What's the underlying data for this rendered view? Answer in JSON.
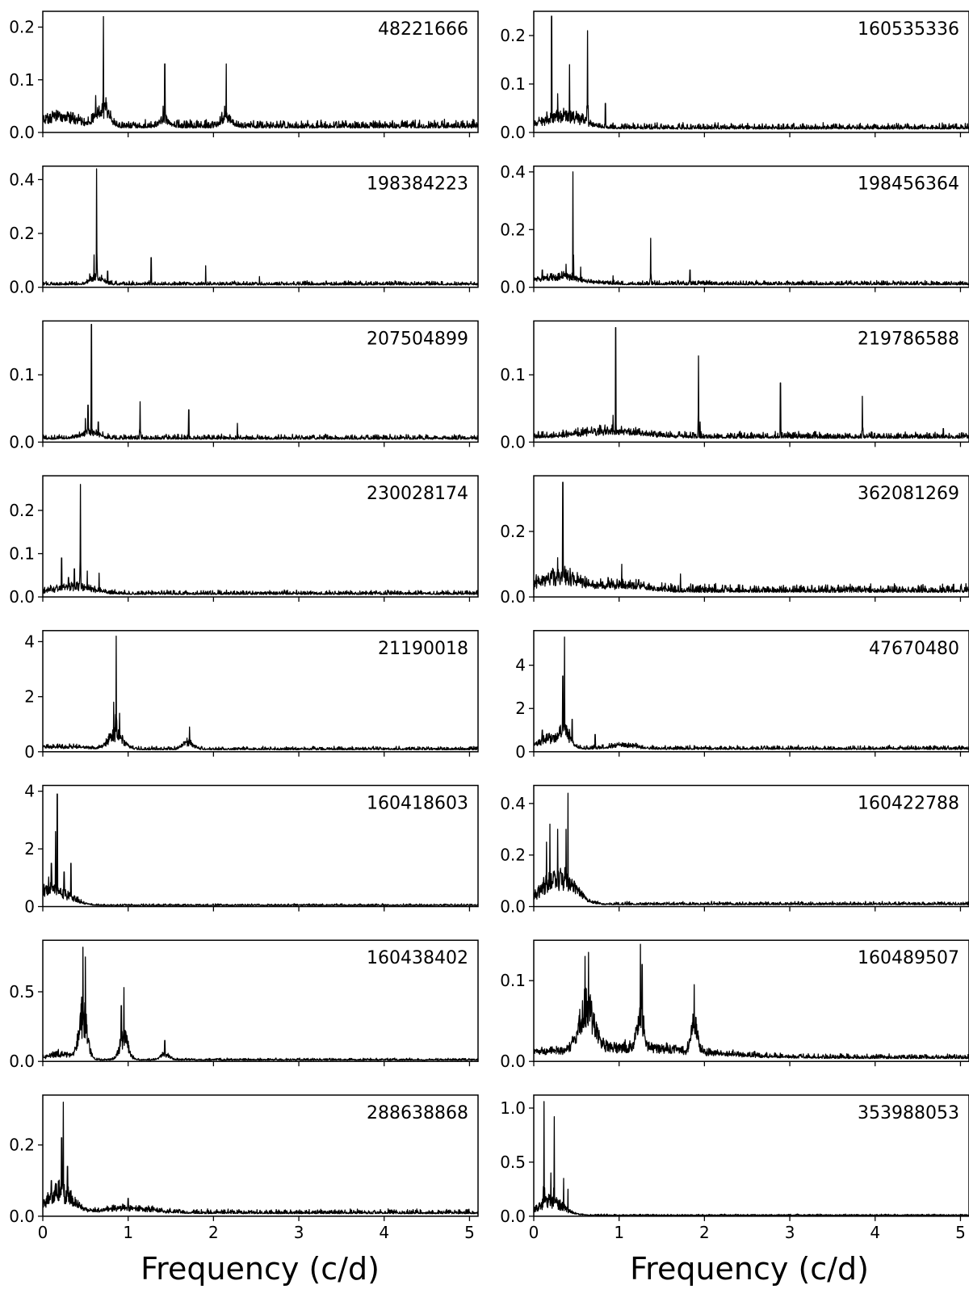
{
  "colors": {
    "line": "#000000",
    "background": "#ffffff",
    "frame": "#000000"
  },
  "chart_data": [
    {
      "type": "line",
      "label": "48221666",
      "ylim": [
        0,
        0.23
      ],
      "yticks": [
        0.0,
        0.1,
        0.2
      ],
      "ytick_labels": [
        "0.0",
        "0.1",
        "0.2"
      ],
      "xlim": [
        0,
        5.1
      ],
      "noise": 0.012,
      "peaks": [
        [
          0.71,
          0.22
        ],
        [
          1.43,
          0.13
        ],
        [
          2.15,
          0.13
        ],
        [
          0.62,
          0.07
        ],
        [
          0.66,
          0.05
        ],
        [
          0.8,
          0.03
        ],
        [
          1.41,
          0.05
        ],
        [
          2.13,
          0.05
        ]
      ],
      "bumps": [
        [
          0.7,
          0.04,
          0.1
        ],
        [
          1.43,
          0.015,
          0.08
        ],
        [
          2.15,
          0.02,
          0.08
        ],
        [
          0.2,
          0.02,
          0.3
        ]
      ]
    },
    {
      "type": "line",
      "label": "160535336",
      "ylim": [
        0,
        0.25
      ],
      "yticks": [
        0.0,
        0.1,
        0.2
      ],
      "ytick_labels": [
        "0.0",
        "0.1",
        "0.2"
      ],
      "xlim": [
        0,
        5.1
      ],
      "noise": 0.01,
      "peaks": [
        [
          0.21,
          0.24
        ],
        [
          0.42,
          0.14
        ],
        [
          0.63,
          0.21
        ],
        [
          0.84,
          0.06
        ],
        [
          0.28,
          0.08
        ],
        [
          0.35,
          0.05
        ],
        [
          0.5,
          0.04
        ]
      ],
      "bumps": [
        [
          0.35,
          0.03,
          0.3
        ]
      ]
    },
    {
      "type": "line",
      "label": "198384223",
      "ylim": [
        0,
        0.45
      ],
      "yticks": [
        0.0,
        0.2,
        0.4
      ],
      "ytick_labels": [
        "0.0",
        "0.2",
        "0.4"
      ],
      "xlim": [
        0,
        5.1
      ],
      "noise": 0.012,
      "peaks": [
        [
          0.63,
          0.44
        ],
        [
          1.27,
          0.11
        ],
        [
          1.91,
          0.08
        ],
        [
          2.54,
          0.04
        ],
        [
          0.6,
          0.12
        ],
        [
          0.76,
          0.06
        ],
        [
          0.55,
          0.05
        ]
      ],
      "bumps": [
        [
          0.63,
          0.03,
          0.1
        ]
      ]
    },
    {
      "type": "line",
      "label": "198456364",
      "ylim": [
        0,
        0.42
      ],
      "yticks": [
        0.0,
        0.2,
        0.4
      ],
      "ytick_labels": [
        "0.0",
        "0.2",
        "0.4"
      ],
      "xlim": [
        0,
        5.1
      ],
      "noise": 0.012,
      "peaks": [
        [
          0.46,
          0.4
        ],
        [
          1.37,
          0.17
        ],
        [
          1.83,
          0.06
        ],
        [
          0.93,
          0.04
        ],
        [
          0.38,
          0.08
        ],
        [
          0.55,
          0.07
        ],
        [
          0.1,
          0.06
        ]
      ],
      "bumps": [
        [
          0.3,
          0.03,
          0.35
        ]
      ]
    },
    {
      "type": "line",
      "label": "207504899",
      "ylim": [
        0,
        0.18
      ],
      "yticks": [
        0.0,
        0.1
      ],
      "ytick_labels": [
        "0.0",
        "0.1"
      ],
      "xlim": [
        0,
        5.1
      ],
      "noise": 0.006,
      "peaks": [
        [
          0.57,
          0.175
        ],
        [
          1.14,
          0.06
        ],
        [
          1.71,
          0.048
        ],
        [
          2.28,
          0.028
        ],
        [
          0.53,
          0.055
        ],
        [
          0.5,
          0.035
        ],
        [
          0.65,
          0.03
        ]
      ],
      "bumps": [
        [
          0.55,
          0.01,
          0.15
        ]
      ]
    },
    {
      "type": "line",
      "label": "219786588",
      "ylim": [
        0,
        0.18
      ],
      "yticks": [
        0.0,
        0.1
      ],
      "ytick_labels": [
        "0.0",
        "0.1"
      ],
      "xlim": [
        0,
        5.1
      ],
      "noise": 0.008,
      "peaks": [
        [
          0.96,
          0.17
        ],
        [
          1.93,
          0.128
        ],
        [
          2.89,
          0.088
        ],
        [
          3.85,
          0.068
        ],
        [
          0.93,
          0.04
        ],
        [
          1.95,
          0.03
        ],
        [
          4.8,
          0.02
        ]
      ],
      "bumps": [
        [
          0.9,
          0.01,
          0.5
        ]
      ]
    },
    {
      "type": "line",
      "label": "230028174",
      "ylim": [
        0,
        0.28
      ],
      "yticks": [
        0.0,
        0.1,
        0.2
      ],
      "ytick_labels": [
        "0.0",
        "0.1",
        "0.2"
      ],
      "xlim": [
        0,
        5.1
      ],
      "noise": 0.008,
      "peaks": [
        [
          0.44,
          0.26
        ],
        [
          0.22,
          0.09
        ],
        [
          0.37,
          0.065
        ],
        [
          0.52,
          0.06
        ],
        [
          0.66,
          0.055
        ],
        [
          0.3,
          0.045
        ]
      ],
      "bumps": [
        [
          0.35,
          0.02,
          0.3
        ]
      ]
    },
    {
      "type": "line",
      "label": "362081269",
      "ylim": [
        0,
        0.37
      ],
      "yticks": [
        0.0,
        0.2
      ],
      "ytick_labels": [
        "0.0",
        "0.2"
      ],
      "xlim": [
        0,
        5.1
      ],
      "noise": 0.02,
      "peaks": [
        [
          0.34,
          0.35
        ],
        [
          1.03,
          0.1
        ],
        [
          1.72,
          0.07
        ],
        [
          0.28,
          0.12
        ],
        [
          0.4,
          0.08
        ]
      ],
      "bumps": [
        [
          0.3,
          0.05,
          0.3
        ],
        [
          1.0,
          0.02,
          0.4
        ]
      ]
    },
    {
      "type": "line",
      "label": "21190018",
      "ylim": [
        0,
        4.4
      ],
      "yticks": [
        0,
        2,
        4
      ],
      "ytick_labels": [
        "0",
        "2",
        "4"
      ],
      "xlim": [
        0,
        5.1
      ],
      "noise": 0.1,
      "peaks": [
        [
          0.86,
          4.2
        ],
        [
          1.72,
          0.9
        ],
        [
          0.83,
          1.8
        ],
        [
          0.9,
          1.4
        ],
        [
          2.58,
          0.2
        ]
      ],
      "bumps": [
        [
          0.85,
          0.6,
          0.12
        ],
        [
          1.7,
          0.3,
          0.08
        ],
        [
          0.2,
          0.1,
          0.4
        ]
      ]
    },
    {
      "type": "line",
      "label": "47670480",
      "ylim": [
        0,
        5.6
      ],
      "yticks": [
        0,
        2,
        4
      ],
      "ytick_labels": [
        "0",
        "2",
        "4"
      ],
      "xlim": [
        0,
        5.1
      ],
      "noise": 0.15,
      "peaks": [
        [
          0.36,
          5.3
        ],
        [
          0.34,
          3.5
        ],
        [
          0.72,
          0.8
        ],
        [
          0.1,
          1.0
        ],
        [
          0.45,
          1.5
        ]
      ],
      "bumps": [
        [
          0.36,
          0.9,
          0.1
        ],
        [
          0.15,
          0.5,
          0.15
        ],
        [
          1.05,
          0.2,
          0.2
        ]
      ]
    },
    {
      "type": "line",
      "label": "160418603",
      "ylim": [
        0,
        4.2
      ],
      "yticks": [
        0,
        2,
        4
      ],
      "ytick_labels": [
        "0",
        "2",
        "4"
      ],
      "xlim": [
        0,
        5.1
      ],
      "noise": 0.05,
      "peaks": [
        [
          0.17,
          3.9
        ],
        [
          0.15,
          2.6
        ],
        [
          0.33,
          1.5
        ],
        [
          0.1,
          1.5
        ],
        [
          0.25,
          1.2
        ]
      ],
      "bumps": [
        [
          0.05,
          0.6,
          0.12
        ],
        [
          0.25,
          0.4,
          0.2
        ]
      ]
    },
    {
      "type": "line",
      "label": "160422788",
      "ylim": [
        0,
        0.47
      ],
      "yticks": [
        0.0,
        0.2,
        0.4
      ],
      "ytick_labels": [
        "0.0",
        "0.2",
        "0.4"
      ],
      "xlim": [
        0,
        5.1
      ],
      "noise": 0.01,
      "peaks": [
        [
          0.4,
          0.44
        ],
        [
          0.19,
          0.32
        ],
        [
          0.28,
          0.3
        ],
        [
          0.38,
          0.3
        ],
        [
          0.15,
          0.25
        ]
      ],
      "bumps": [
        [
          0.25,
          0.1,
          0.25
        ],
        [
          0.45,
          0.04,
          0.15
        ]
      ]
    },
    {
      "type": "line",
      "label": "160438402",
      "ylim": [
        0,
        0.87
      ],
      "yticks": [
        0.0,
        0.5
      ],
      "ytick_labels": [
        "0.0",
        "0.5"
      ],
      "xlim": [
        0,
        5.1
      ],
      "noise": 0.012,
      "peaks": [
        [
          0.47,
          0.82
        ],
        [
          0.95,
          0.53
        ],
        [
          1.43,
          0.15
        ],
        [
          0.5,
          0.75
        ],
        [
          0.92,
          0.4
        ]
      ],
      "bumps": [
        [
          0.47,
          0.35,
          0.07
        ],
        [
          0.95,
          0.18,
          0.07
        ],
        [
          1.43,
          0.05,
          0.07
        ],
        [
          0.2,
          0.05,
          0.2
        ]
      ]
    },
    {
      "type": "line",
      "label": "160489507",
      "ylim": [
        0,
        0.15
      ],
      "yticks": [
        0.0,
        0.1
      ],
      "ytick_labels": [
        "0.0",
        "0.1"
      ],
      "xlim": [
        0,
        5.1
      ],
      "noise": 0.005,
      "peaks": [
        [
          0.64,
          0.135
        ],
        [
          1.25,
          0.145
        ],
        [
          1.88,
          0.095
        ],
        [
          0.6,
          0.13
        ],
        [
          1.27,
          0.12
        ]
      ],
      "bumps": [
        [
          0.62,
          0.06,
          0.12
        ],
        [
          1.25,
          0.05,
          0.05
        ],
        [
          1.88,
          0.04,
          0.05
        ],
        [
          1.0,
          0.015,
          1.2
        ]
      ]
    },
    {
      "type": "line",
      "label": "288638868",
      "ylim": [
        0,
        0.34
      ],
      "yticks": [
        0.0,
        0.2
      ],
      "ytick_labels": [
        "0.0",
        "0.2"
      ],
      "xlim": [
        0,
        5.1
      ],
      "noise": 0.01,
      "peaks": [
        [
          0.24,
          0.32
        ],
        [
          0.22,
          0.22
        ],
        [
          0.29,
          0.14
        ],
        [
          0.1,
          0.1
        ],
        [
          1.0,
          0.05
        ]
      ],
      "bumps": [
        [
          0.2,
          0.07,
          0.2
        ],
        [
          1.0,
          0.015,
          0.4
        ]
      ]
    },
    {
      "type": "line",
      "label": "353988053",
      "ylim": [
        0,
        1.12
      ],
      "yticks": [
        0.0,
        0.5,
        1.0
      ],
      "ytick_labels": [
        "0.0",
        "0.5",
        "1.0"
      ],
      "xlim": [
        0,
        5.1
      ],
      "noise": 0.01,
      "peaks": [
        [
          0.12,
          1.06
        ],
        [
          0.24,
          0.92
        ],
        [
          0.35,
          0.35
        ],
        [
          0.2,
          0.4
        ],
        [
          0.4,
          0.25
        ]
      ],
      "bumps": [
        [
          0.2,
          0.15,
          0.2
        ]
      ]
    }
  ],
  "x_axis": {
    "ticks": [
      0,
      1,
      2,
      3,
      4,
      5
    ],
    "tick_labels": [
      "0",
      "1",
      "2",
      "3",
      "4",
      "5"
    ],
    "left_xlabel": "Frequency (c/d)",
    "right_xlabel": "Frequency (c/d)"
  }
}
